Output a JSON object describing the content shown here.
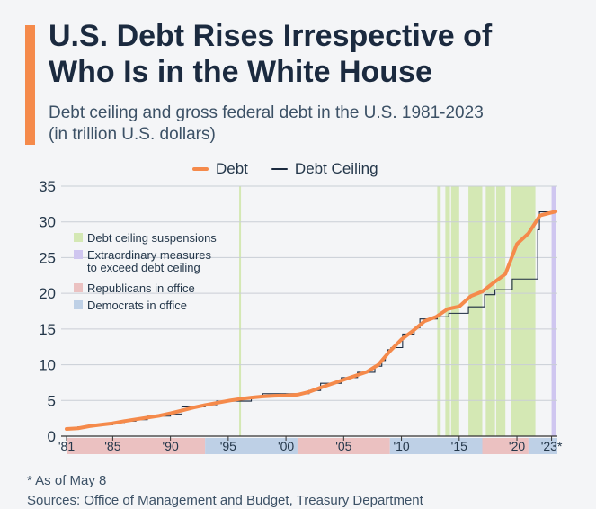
{
  "header": {
    "title_line1": "U.S. Debt Rises Irrespective of",
    "title_line2": "Who Is in the White House",
    "subtitle_line1": "Debt ceiling and gross federal debt in the U.S. 1981-2023",
    "subtitle_line2": "(in trillion U.S. dollars)"
  },
  "colors": {
    "accent": "#f58a4b",
    "debt": "#f58a4b",
    "ceiling": "#1b2a3f",
    "suspension": "#d4e8b4",
    "extraordinary": "#cfc6f0",
    "republican": "#ebc1c1",
    "democrat": "#bed0e6"
  },
  "legend": {
    "debt": "Debt",
    "ceiling": "Debt Ceiling"
  },
  "inner_legend": [
    {
      "label": "Debt ceiling suspensions",
      "color": "#d4e8b4"
    },
    {
      "label": "Extraordinary measures\nto exceed debt ceiling",
      "color": "#cfc6f0"
    },
    {
      "label": "Republicans in office",
      "color": "#ebc1c1"
    },
    {
      "label": "Democrats in office",
      "color": "#bed0e6"
    }
  ],
  "chart_data": {
    "type": "line",
    "title": "U.S. Debt Rises Irrespective of Who Is in the White House",
    "xlim": [
      1981,
      2023.5
    ],
    "ylim": [
      0,
      35
    ],
    "yticks": [
      0,
      5,
      10,
      15,
      20,
      25,
      30,
      35
    ],
    "xticks": [
      {
        "v": 1981,
        "label": "'81"
      },
      {
        "v": 1985,
        "label": "'85"
      },
      {
        "v": 1990,
        "label": "'90"
      },
      {
        "v": 1995,
        "label": "'95"
      },
      {
        "v": 2000,
        "label": "'00"
      },
      {
        "v": 2005,
        "label": "'05"
      },
      {
        "v": 2010,
        "label": "'10"
      },
      {
        "v": 2015,
        "label": "'15"
      },
      {
        "v": 2020,
        "label": "'20"
      },
      {
        "v": 2023,
        "label": "'23*"
      }
    ],
    "series": [
      {
        "name": "Debt",
        "x": [
          1981,
          1982,
          1983,
          1984,
          1985,
          1986,
          1987,
          1988,
          1989,
          1990,
          1991,
          1992,
          1993,
          1994,
          1995,
          1996,
          1997,
          1998,
          1999,
          2000,
          2001,
          2002,
          2003,
          2004,
          2005,
          2006,
          2007,
          2008,
          2009,
          2010,
          2011,
          2012,
          2013,
          2014,
          2015,
          2016,
          2017,
          2018,
          2019,
          2020,
          2021,
          2022,
          2023.35
        ],
        "values": [
          1.0,
          1.1,
          1.4,
          1.6,
          1.8,
          2.1,
          2.35,
          2.6,
          2.85,
          3.2,
          3.6,
          4.0,
          4.35,
          4.65,
          4.95,
          5.2,
          5.4,
          5.55,
          5.65,
          5.7,
          5.8,
          6.2,
          6.8,
          7.35,
          7.9,
          8.45,
          9.0,
          10.0,
          11.9,
          13.55,
          14.75,
          16.1,
          16.7,
          17.8,
          18.15,
          19.6,
          20.25,
          21.5,
          22.7,
          26.9,
          28.4,
          30.9,
          31.45
        ]
      },
      {
        "name": "Debt Ceiling",
        "step_x": [
          1981,
          1982,
          1983,
          1984,
          1985,
          1986,
          1987,
          1988,
          1989,
          1990,
          1991,
          1993,
          1994,
          1997,
          1998,
          2002,
          2003,
          2004.8,
          2006.2,
          2007.7,
          2008.3,
          2008.6,
          2008.8,
          2009.1,
          2010.1,
          2011.1,
          2011.6,
          2012.1,
          2013.1,
          2014.1,
          2015.8,
          2017.2,
          2018.1,
          2019.6,
          2021.7,
          2021.8,
          2021.95
        ],
        "step_y": [
          1.0,
          1.3,
          1.5,
          1.6,
          1.9,
          2.1,
          2.3,
          2.8,
          2.8,
          3.1,
          4.1,
          4.4,
          4.9,
          5.5,
          5.95,
          6.4,
          7.4,
          8.2,
          8.95,
          9.8,
          10.6,
          11.3,
          12.1,
          12.4,
          14.3,
          15.2,
          16.4,
          16.4,
          16.7,
          17.2,
          18.1,
          19.8,
          20.5,
          22.0,
          22.0,
          28.9,
          31.4
        ]
      }
    ],
    "debt_ceiling_suspensions": [
      [
        1995.95,
        1996.1
      ],
      [
        2013.1,
        2013.4
      ],
      [
        2013.8,
        2014.2
      ],
      [
        2014.3,
        2015.0
      ],
      [
        2015.8,
        2017.0
      ],
      [
        2017.3,
        2018.1
      ],
      [
        2018.2,
        2019.0
      ],
      [
        2019.5,
        2021.6
      ]
    ],
    "extraordinary_measures": [
      [
        2023.0,
        2023.35
      ]
    ],
    "administrations": [
      {
        "party": "R",
        "from": 1981,
        "to": 1993
      },
      {
        "party": "D",
        "from": 1993,
        "to": 2001
      },
      {
        "party": "R",
        "from": 2001,
        "to": 2009
      },
      {
        "party": "D",
        "from": 2009,
        "to": 2017
      },
      {
        "party": "R",
        "from": 2017,
        "to": 2021
      },
      {
        "party": "D",
        "from": 2021,
        "to": 2023.5
      }
    ]
  },
  "footer": {
    "note": "* As of May 8",
    "sources": "Sources: Office of Management and Budget, Treasury Department"
  }
}
